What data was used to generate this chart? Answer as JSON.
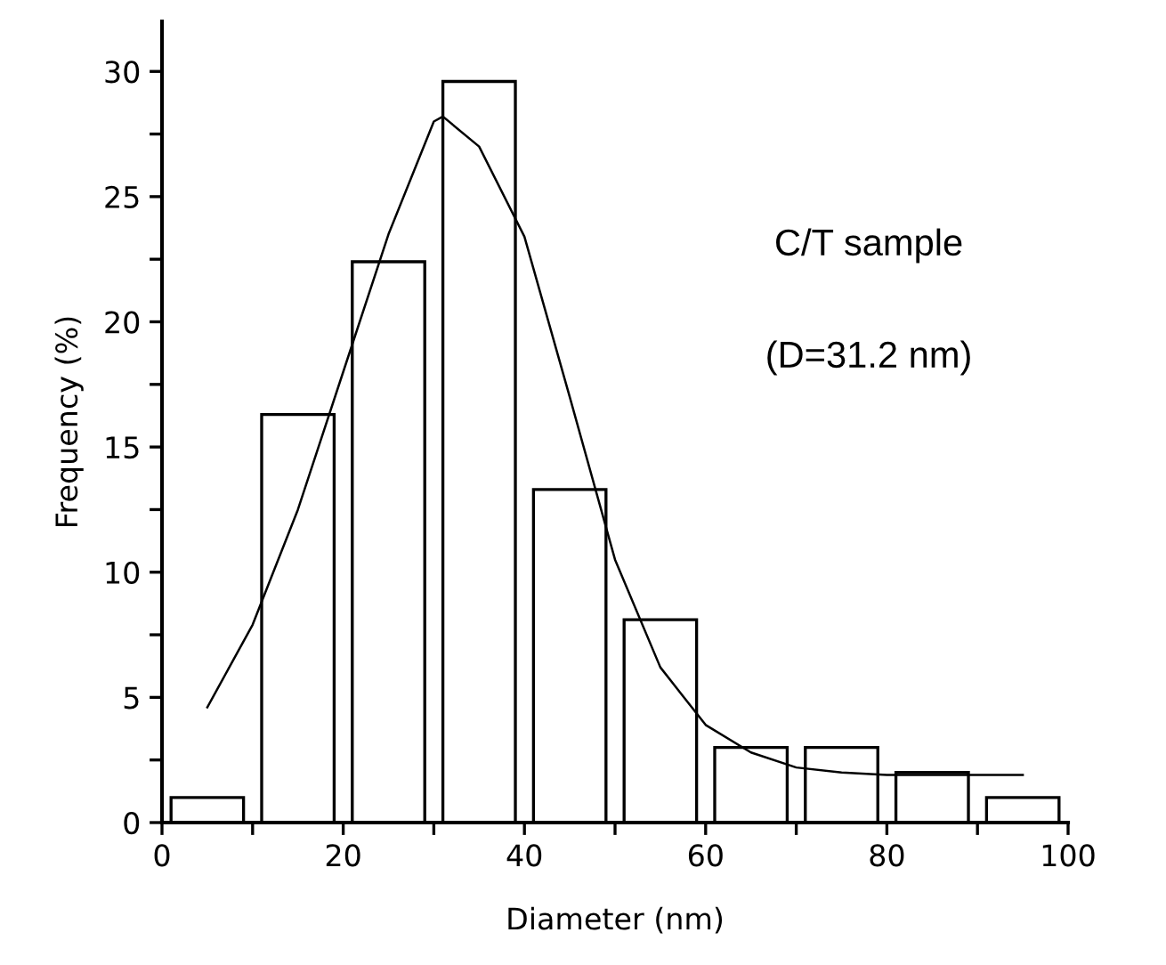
{
  "chart_data": {
    "type": "histogram",
    "xlabel": "Diameter (nm)",
    "ylabel": "Frequency (%)",
    "annotations": [
      "C/T sample",
      "(D=31.2 nm)"
    ],
    "bins": [
      0,
      10,
      20,
      30,
      40,
      50,
      60,
      70,
      80,
      90,
      100
    ],
    "series": [
      {
        "color": "#000000",
        "values": [
          1.0,
          16.3,
          22.4,
          29.6,
          13.3,
          8.1,
          3.0,
          3.0,
          2.0,
          1.0
        ]
      },
      {
        "type": "line",
        "color": "#000000",
        "x": [
          5,
          10,
          15,
          20,
          25,
          30,
          31,
          35,
          40,
          45,
          50,
          55,
          60,
          65,
          70,
          75,
          80,
          85,
          90,
          95
        ],
        "values": [
          4.6,
          7.9,
          12.5,
          18.0,
          23.5,
          28.0,
          28.2,
          27.0,
          23.4,
          17.0,
          10.5,
          6.2,
          3.9,
          2.8,
          2.2,
          2.0,
          1.9,
          1.9,
          1.9,
          1.9
        ]
      }
    ],
    "xlim": [
      0,
      100
    ],
    "ylim": [
      0,
      32
    ],
    "xticks": [
      0,
      {
        "value": 10,
        "label": null
      },
      20,
      {
        "value": 30,
        "label": null
      },
      40,
      {
        "value": 50,
        "label": null
      },
      60,
      {
        "value": 70,
        "label": null
      },
      80,
      {
        "value": 90,
        "label": null
      },
      100
    ],
    "yticks": [
      0,
      {
        "value": 2.5,
        "label": null
      },
      5,
      {
        "value": 7.5,
        "label": null
      },
      10,
      {
        "value": 12.5,
        "label": null
      },
      15,
      {
        "value": 17.5,
        "label": null
      },
      20,
      {
        "value": 22.5,
        "label": null
      },
      25,
      {
        "value": 27.5,
        "label": null
      },
      30
    ],
    "grid": false,
    "legend": false
  }
}
